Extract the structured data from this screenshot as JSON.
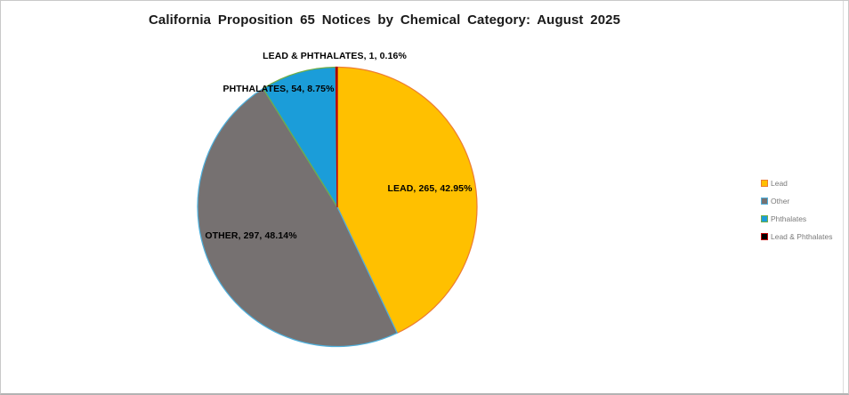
{
  "page": {
    "title": "California Proposition 65 Notices by Chemical Category: August 2025"
  },
  "chart_data": {
    "type": "pie",
    "title": "California Proposition 65 Notices by Chemical Category: August 2025",
    "start_angle_deg": 0,
    "direction": "clockwise",
    "legend_position": "right",
    "slices": [
      {
        "label": "Lead",
        "value": 265,
        "pct": 42.95,
        "fill": "#FFC000",
        "border": "#ED7D31",
        "data_label": "LEAD, 265, 42.95%"
      },
      {
        "label": "Other",
        "value": 297,
        "pct": 48.14,
        "fill": "#767171",
        "border": "#4FB0DC",
        "data_label": "OTHER, 297, 48.14%"
      },
      {
        "label": "Phthalates",
        "value": 54,
        "pct": 8.75,
        "fill": "#1B9DD9",
        "border": "#70AD47",
        "data_label": "PHTHALATES, 54, 8.75%"
      },
      {
        "label": "Lead & Phthalates",
        "value": 1,
        "pct": 0.16,
        "fill": "#000000",
        "border": "#C00000",
        "data_label": "LEAD & PHTHALATES, 1, 0.16%"
      }
    ]
  }
}
